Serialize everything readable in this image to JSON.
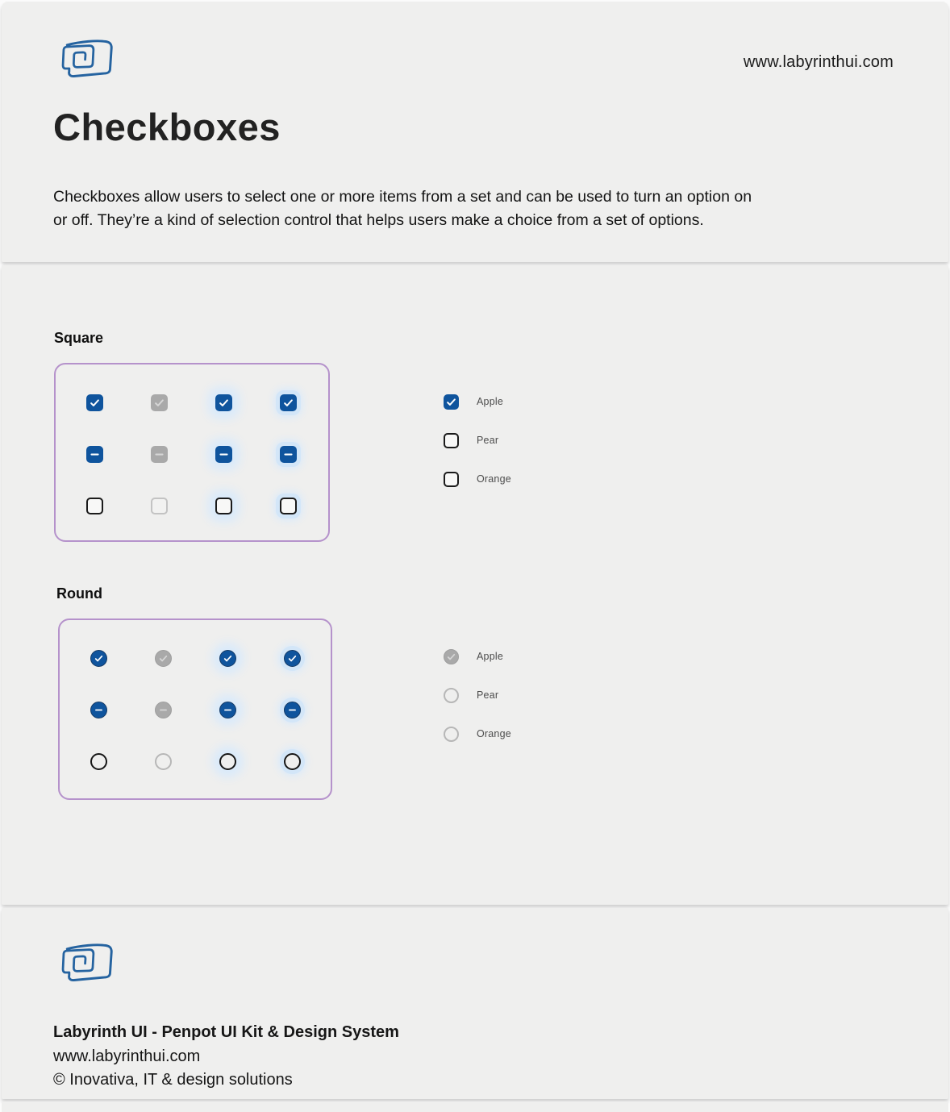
{
  "page": {
    "site_url": "www.labyrinthui.com",
    "title": "Checkboxes",
    "description": "Checkboxes allow users to select one or more items from a set and can be used to turn an option on or off. They’re a kind of selection control that helps users make a choice from a set of options."
  },
  "colors": {
    "accent": "#0f549d",
    "disabled": "#a9a9a9",
    "glow": "#d9eafb",
    "panel_border": "#b592cb",
    "logo_blue": "#2563a0"
  },
  "sections": [
    {
      "heading": "Square",
      "shape": "square",
      "grid": [
        [
          "checked",
          "checked disabled",
          "checked hover",
          "checked focus"
        ],
        [
          "indeterminate",
          "indeterminate disabled",
          "indeterminate hover",
          "indeterminate focus"
        ],
        [
          "unchecked",
          "unchecked disabled",
          "unchecked hover",
          "unchecked focus"
        ]
      ],
      "options": [
        {
          "label": "Apple",
          "state": "checked"
        },
        {
          "label": "Pear",
          "state": "unchecked"
        },
        {
          "label": "Orange",
          "state": "unchecked"
        }
      ]
    },
    {
      "heading": "Round",
      "shape": "round",
      "grid": [
        [
          "checked",
          "checked disabled",
          "checked hover",
          "checked focus"
        ],
        [
          "indeterminate",
          "indeterminate disabled",
          "indeterminate hover",
          "indeterminate focus"
        ],
        [
          "unchecked",
          "unchecked disabled",
          "unchecked hover",
          "unchecked focus"
        ]
      ],
      "options": [
        {
          "label": "Apple",
          "state": "checked disabled"
        },
        {
          "label": "Pear",
          "state": "unchecked disabled"
        },
        {
          "label": "Orange",
          "state": "unchecked disabled"
        }
      ]
    }
  ],
  "footer": {
    "brand_line": "Labyrinth UI  - Penpot UI Kit & Design System",
    "site_url": "www.labyrinthui.com",
    "copyright": "© Inovativa, IT & design solutions"
  }
}
